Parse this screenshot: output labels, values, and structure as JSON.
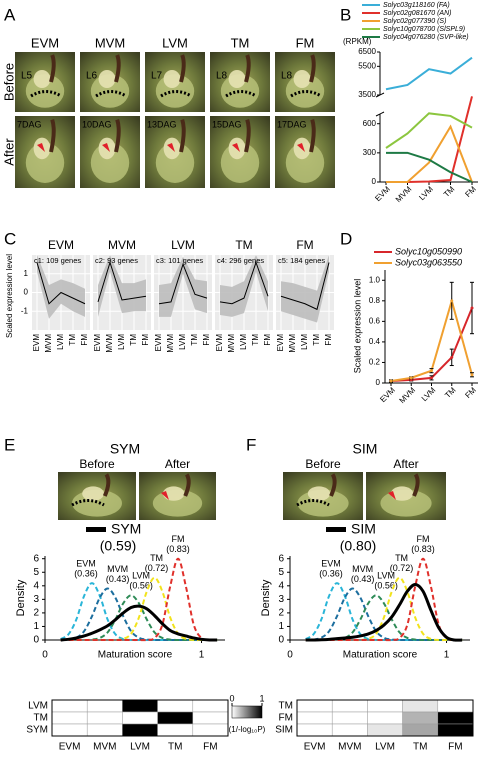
{
  "panel_labels": [
    "A",
    "B",
    "C",
    "D",
    "E",
    "F"
  ],
  "panel_a": {
    "columns": [
      "EVM",
      "MVM",
      "LVM",
      "TM",
      "FM"
    ],
    "rows": [
      "Before",
      "After"
    ],
    "before_labels": [
      "L5",
      "L6",
      "L7",
      "L8",
      "L8"
    ],
    "after_labels": [
      "7DAG",
      "10DAG",
      "13DAG",
      "15DAG",
      "17DAG"
    ]
  },
  "panel_e": {
    "title": "SYM",
    "photo_labels": [
      "Before",
      "After"
    ]
  },
  "panel_f": {
    "title": "SIM",
    "photo_labels": [
      "Before",
      "After"
    ]
  },
  "chart_data": [
    {
      "type": "line",
      "y_label": "(RPKM)",
      "categories": [
        "EVM",
        "MVM",
        "LVM",
        "TM",
        "FM"
      ],
      "series": [
        {
          "name": "Solyc03g118160 (FA)",
          "color": "#3aaed8",
          "values": [
            3900,
            4200,
            5300,
            5000,
            6100
          ]
        },
        {
          "name": "Solyc02g081670 (AN)",
          "color": "#e0302b",
          "values": [
            0,
            0,
            5,
            20,
            3300
          ]
        },
        {
          "name": "Solyc02g077390 (S)",
          "color": "#f0a030",
          "values": [
            0,
            0,
            200,
            570,
            0
          ]
        },
        {
          "name": "Solyc10g078700 (SlSPL9)",
          "color": "#8cc63f",
          "values": [
            350,
            500,
            800,
            680,
            560
          ]
        },
        {
          "name": "Solyc04g076280 (SVP-like)",
          "color": "#1e7a45",
          "values": [
            300,
            300,
            230,
            100,
            0
          ]
        }
      ],
      "ylim": [
        0,
        6500
      ],
      "yticks": [
        0,
        300,
        600,
        3500,
        5500,
        6500
      ],
      "axis_break": [
        700,
        3500
      ]
    },
    {
      "type": "cluster-profile",
      "y_label": "Scaled expression level",
      "categories": [
        "EVM",
        "MVM",
        "LVM",
        "TM",
        "FM"
      ],
      "ylim": [
        -2,
        2
      ],
      "yticks": [
        -1,
        0,
        1
      ],
      "grid": true,
      "band_color": "#bdbdbd",
      "highlight_color": "#e0302b",
      "panels": [
        {
          "title": "EVM",
          "subtitle": "c1: 109 genes",
          "highlight": 0,
          "values": [
            1.6,
            -0.6,
            0,
            -0.3,
            -0.6
          ],
          "lower": [
            1.1,
            -1.4,
            -0.6,
            -1.0,
            -1.3
          ],
          "upper": [
            2.0,
            0.4,
            0.7,
            0.5,
            0.2
          ]
        },
        {
          "title": "MVM",
          "subtitle": "c2: 93 genes",
          "highlight": 1,
          "values": [
            -0.5,
            1.6,
            -0.4,
            -0.3,
            -0.2
          ],
          "lower": [
            -1.3,
            1.1,
            -1.1,
            -1.0,
            -1.0
          ],
          "upper": [
            0.4,
            2.0,
            0.5,
            0.5,
            0.7
          ]
        },
        {
          "title": "LVM",
          "subtitle": "c3: 101 genes",
          "highlight": 2,
          "values": [
            -0.6,
            -0.5,
            1.5,
            -0.1,
            -0.3
          ],
          "lower": [
            -1.3,
            -1.3,
            1.0,
            -0.9,
            -1.1
          ],
          "upper": [
            0.4,
            0.5,
            1.9,
            0.7,
            0.6
          ]
        },
        {
          "title": "TM",
          "subtitle": "c4: 296 genes",
          "highlight": 3,
          "values": [
            -0.5,
            -0.6,
            -0.3,
            1.6,
            -0.2
          ],
          "lower": [
            -1.2,
            -1.3,
            -1.1,
            1.1,
            -1.0
          ],
          "upper": [
            0.4,
            0.3,
            0.6,
            2.0,
            0.6
          ]
        },
        {
          "title": "FM",
          "subtitle": "c5: 184 genes",
          "highlight": 4,
          "values": [
            -0.2,
            -0.4,
            -0.6,
            -0.9,
            1.6
          ],
          "lower": [
            -1.0,
            -1.2,
            -1.4,
            -1.6,
            1.1
          ],
          "upper": [
            0.6,
            0.5,
            0.3,
            0.1,
            2.0
          ]
        }
      ]
    },
    {
      "type": "errorbar-line",
      "y_label": "Scaled expression level",
      "categories": [
        "EVM",
        "MVM",
        "LVM",
        "TM",
        "FM"
      ],
      "series": [
        {
          "name": "Solyc10g050990",
          "color": "#d7262b",
          "values": [
            0.02,
            0.03,
            0.05,
            0.25,
            0.73
          ],
          "errors": [
            0.01,
            0.01,
            0.02,
            0.08,
            0.25
          ]
        },
        {
          "name": "Solyc03g063550",
          "color": "#f0a030",
          "values": [
            0.02,
            0.05,
            0.12,
            0.8,
            0.08
          ],
          "errors": [
            0.01,
            0.01,
            0.02,
            0.18,
            0.02
          ]
        }
      ],
      "ylim": [
        0,
        1.1
      ],
      "yticks": [
        0,
        0.2,
        0.4,
        0.6,
        0.8,
        {
          "value": 1,
          "label": "1.0"
        }
      ]
    },
    {
      "type": "density",
      "x_label": "Maturation score",
      "y_label": "Density",
      "x": [
        0.1,
        0.15,
        0.2,
        0.25,
        0.3,
        0.35,
        0.4,
        0.45,
        0.5,
        0.55,
        0.6,
        0.65,
        0.7,
        0.75,
        0.8,
        0.85,
        0.9,
        0.95,
        1.0,
        1.05,
        1.1
      ],
      "series": [
        {
          "name": "EVM",
          "label": "(0.36)",
          "color": "#29b5d8",
          "dash": true,
          "values": [
            0.07,
            0.42,
            1.51,
            3.26,
            4.2,
            3.26,
            1.51,
            0.42,
            0.07,
            0,
            0,
            0,
            0,
            0,
            0,
            0,
            0,
            0,
            0,
            0,
            0
          ]
        },
        {
          "name": "MVM",
          "label": "(0.43)",
          "color": "#1c6e9e",
          "dash": true,
          "values": [
            0,
            0.03,
            0.17,
            0.65,
            1.75,
            3.12,
            3.8,
            3.12,
            1.75,
            0.65,
            0.17,
            0.03,
            0,
            0,
            0,
            0,
            0,
            0,
            0,
            0,
            0
          ]
        },
        {
          "name": "LVM",
          "label": "(0.56)",
          "color": "#2e8b57",
          "dash": true,
          "values": [
            0,
            0,
            0,
            0,
            0.03,
            0.15,
            0.56,
            1.52,
            2.71,
            3.3,
            2.71,
            1.52,
            0.56,
            0.15,
            0.03,
            0,
            0,
            0,
            0,
            0,
            0
          ]
        },
        {
          "name": "TM",
          "label": "(0.72)",
          "color": "#f2e31c",
          "dash": true,
          "values": [
            0,
            0,
            0,
            0,
            0,
            0,
            0,
            0,
            0.08,
            0.46,
            1.66,
            3.57,
            4.6,
            3.57,
            1.66,
            0.46,
            0.08,
            0,
            0,
            0,
            0
          ]
        },
        {
          "name": "FM",
          "label": "(0.83)",
          "color": "#e0302b",
          "dash": true,
          "values": [
            0,
            0,
            0,
            0,
            0,
            0,
            0,
            0,
            0,
            0,
            0,
            0,
            0.14,
            1.14,
            3.96,
            6.0,
            3.96,
            1.14,
            0.14,
            0,
            0
          ]
        },
        {
          "name": "SYM",
          "label": "(0.59)",
          "color": "#000000",
          "dash": false,
          "values": [
            0,
            0.05,
            0.15,
            0.3,
            0.5,
            0.75,
            1.05,
            1.5,
            2.0,
            2.4,
            2.5,
            2.3,
            1.8,
            1.2,
            0.7,
            0.45,
            0.3,
            0.15,
            0.05,
            0,
            0
          ]
        }
      ],
      "xlim": [
        0,
        1.15
      ],
      "xticks": [
        0,
        1
      ],
      "ylim": [
        0,
        6.2
      ],
      "yticks": [
        0,
        1,
        2,
        3,
        4,
        5,
        6
      ]
    },
    {
      "type": "heatmap",
      "rows": [
        "LVM",
        "TM",
        "SYM"
      ],
      "row_colors": [
        "#000000",
        "#000000",
        "#e0302b"
      ],
      "columns": [
        "EVM",
        "MVM",
        "LVM",
        "TM",
        "FM"
      ],
      "values": [
        [
          0,
          0,
          1,
          0,
          0
        ],
        [
          0,
          0,
          0,
          1,
          0
        ],
        [
          0,
          0,
          1,
          0,
          0
        ]
      ],
      "color_range": [
        "#ffffff",
        "#000000"
      ],
      "clim": [
        0,
        1
      ],
      "colorbar_ticks": [
        0,
        1
      ],
      "colorbar_label": "(1/-log₁₀P)"
    },
    {
      "type": "density",
      "x_label": "Maturation score",
      "y_label": "Density",
      "x": [
        0.1,
        0.15,
        0.2,
        0.25,
        0.3,
        0.35,
        0.4,
        0.45,
        0.5,
        0.55,
        0.6,
        0.65,
        0.7,
        0.75,
        0.8,
        0.85,
        0.9,
        0.95,
        1.0,
        1.05,
        1.1
      ],
      "series": [
        {
          "name": "EVM",
          "label": "(0.36)",
          "color": "#29b5d8",
          "dash": true,
          "values": [
            0.07,
            0.42,
            1.51,
            3.26,
            4.2,
            3.26,
            1.51,
            0.42,
            0.07,
            0,
            0,
            0,
            0,
            0,
            0,
            0,
            0,
            0,
            0,
            0,
            0
          ]
        },
        {
          "name": "MVM",
          "label": "(0.43)",
          "color": "#1c6e9e",
          "dash": true,
          "values": [
            0,
            0.03,
            0.17,
            0.65,
            1.75,
            3.12,
            3.8,
            3.12,
            1.75,
            0.65,
            0.17,
            0.03,
            0,
            0,
            0,
            0,
            0,
            0,
            0,
            0,
            0
          ]
        },
        {
          "name": "LVM",
          "label": "(0.56)",
          "color": "#2e8b57",
          "dash": true,
          "values": [
            0,
            0,
            0,
            0,
            0.03,
            0.15,
            0.56,
            1.52,
            2.71,
            3.3,
            2.71,
            1.52,
            0.56,
            0.15,
            0.03,
            0,
            0,
            0,
            0,
            0,
            0
          ]
        },
        {
          "name": "TM",
          "label": "(0.72)",
          "color": "#f2e31c",
          "dash": true,
          "values": [
            0,
            0,
            0,
            0,
            0,
            0,
            0,
            0,
            0.08,
            0.46,
            1.66,
            3.57,
            4.6,
            3.57,
            1.66,
            0.46,
            0.08,
            0,
            0,
            0,
            0
          ]
        },
        {
          "name": "FM",
          "label": "(0.83)",
          "color": "#e0302b",
          "dash": true,
          "values": [
            0,
            0,
            0,
            0,
            0,
            0,
            0,
            0,
            0,
            0,
            0,
            0,
            0.14,
            1.14,
            3.96,
            6.0,
            3.96,
            1.14,
            0.14,
            0,
            0
          ]
        },
        {
          "name": "SIM",
          "label": "(0.80)",
          "color": "#000000",
          "dash": false,
          "values": [
            0,
            0,
            0.02,
            0.05,
            0.1,
            0.15,
            0.2,
            0.3,
            0.45,
            0.7,
            1.1,
            1.7,
            2.6,
            3.6,
            4.1,
            3.6,
            2.2,
            0.9,
            0.2,
            0,
            0
          ]
        }
      ],
      "xlim": [
        0,
        1.15
      ],
      "xticks": [
        0,
        1
      ],
      "ylim": [
        0,
        6.2
      ],
      "yticks": [
        0,
        1,
        2,
        3,
        4,
        5,
        6
      ]
    },
    {
      "type": "heatmap",
      "rows": [
        "TM",
        "FM",
        "SIM"
      ],
      "row_colors": [
        "#000000",
        "#000000",
        "#e0302b"
      ],
      "columns": [
        "EVM",
        "MVM",
        "LVM",
        "TM",
        "FM"
      ],
      "values": [
        [
          0,
          0,
          0,
          0.1,
          0
        ],
        [
          0,
          0,
          0,
          0.3,
          1
        ],
        [
          0,
          0,
          0.1,
          0.35,
          1
        ]
      ],
      "color_range": [
        "#ffffff",
        "#000000"
      ],
      "clim": [
        0,
        1
      ]
    }
  ]
}
